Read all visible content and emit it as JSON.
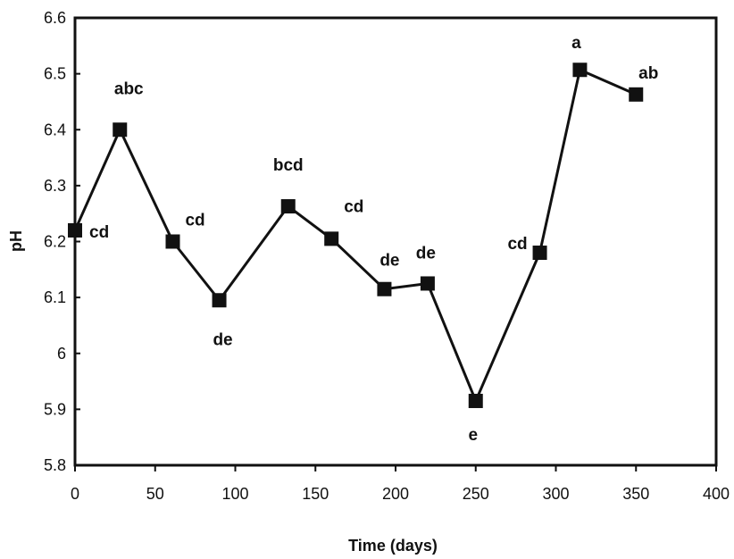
{
  "chart_data": {
    "type": "line",
    "xlabel": "Time (days)",
    "ylabel": "pH",
    "xlim": [
      0,
      400
    ],
    "ylim": [
      5.8,
      6.6
    ],
    "x_ticks": [
      "0",
      "50",
      "100",
      "150",
      "200",
      "250",
      "300",
      "350",
      "400"
    ],
    "y_ticks": [
      "5.8",
      "5.9",
      "6",
      "6.1",
      "6.2",
      "6.3",
      "6.4",
      "6.5",
      "6.6"
    ],
    "grid": false,
    "legend": false,
    "colors": {
      "line": "#111111",
      "marker": "#111111",
      "axis": "#111111"
    },
    "series": [
      {
        "points": [
          {
            "x": 0,
            "y": 6.22,
            "label": "cd"
          },
          {
            "x": 28,
            "y": 6.4,
            "label": "abc"
          },
          {
            "x": 61,
            "y": 6.2,
            "label": "cd"
          },
          {
            "x": 90,
            "y": 6.095,
            "label": "de"
          },
          {
            "x": 133,
            "y": 6.263,
            "label": "bcd"
          },
          {
            "x": 160,
            "y": 6.205,
            "label": "cd"
          },
          {
            "x": 193,
            "y": 6.115,
            "label": "de"
          },
          {
            "x": 220,
            "y": 6.125,
            "label": "de"
          },
          {
            "x": 250,
            "y": 5.915,
            "label": "e"
          },
          {
            "x": 290,
            "y": 6.18,
            "label": "cd"
          },
          {
            "x": 315,
            "y": 6.507,
            "label": "a"
          },
          {
            "x": 350,
            "y": 6.463,
            "label": "ab"
          }
        ]
      }
    ]
  }
}
